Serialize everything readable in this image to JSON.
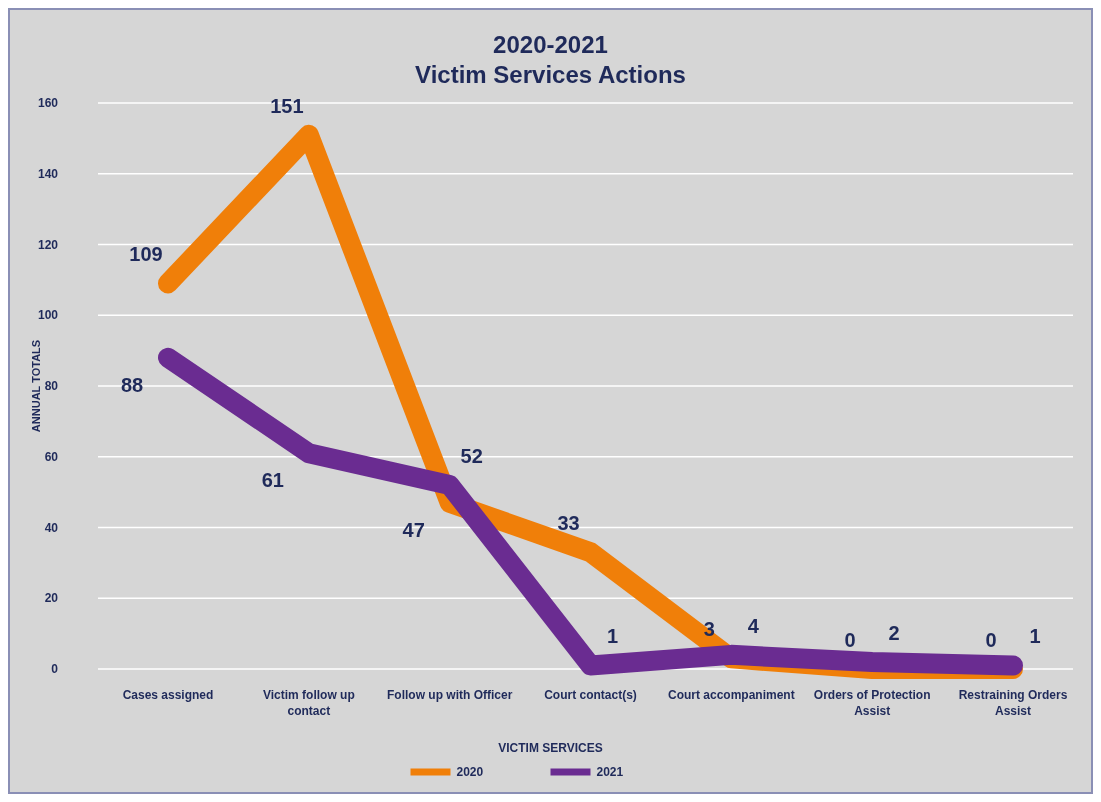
{
  "chart_data": {
    "type": "line",
    "title": "2020-2021\nVictim Services Actions",
    "xlabel": "VICTIM SERVICES",
    "ylabel": "ANNUAL TOTALS",
    "categories": [
      "Cases assigned",
      "Victim follow up contact",
      "Follow up with Officer",
      "Court contact(s)",
      "Court accompaniment",
      "Orders of Protection Assist",
      "Restraining Orders Assist"
    ],
    "series": [
      {
        "name": "2020",
        "color": "#f07f09",
        "values": [
          109,
          151,
          47,
          33,
          3,
          0,
          0
        ]
      },
      {
        "name": "2021",
        "color": "#6a2c91",
        "values": [
          88,
          61,
          52,
          1,
          4,
          2,
          1
        ]
      }
    ],
    "ylim": [
      0,
      160
    ],
    "yticks": [
      0,
      20,
      40,
      60,
      80,
      100,
      120,
      140,
      160
    ],
    "grid": "y",
    "legend": "bottom",
    "data_labels": true,
    "line_style": "solid"
  }
}
